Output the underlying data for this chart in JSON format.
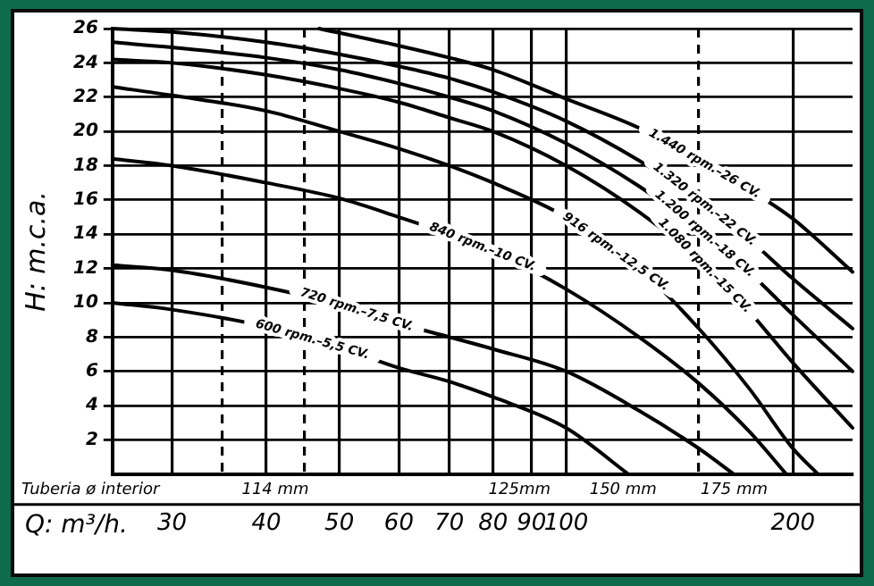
{
  "chart_data": {
    "type": "line",
    "xlabel": "Q: m³/h.",
    "ylabel": "H: m.c.a.",
    "log": "x",
    "xlim": [
      25,
      240
    ],
    "ylim": [
      0,
      26
    ],
    "xticks": [
      30,
      {
        "value": 35,
        "label": null
      },
      40,
      {
        "value": 45,
        "label": null
      },
      50,
      60,
      70,
      80,
      90,
      100,
      {
        "value": 150,
        "label": null
      },
      200
    ],
    "yticks": [
      2,
      4,
      6,
      8,
      10,
      12,
      14,
      16,
      18,
      20,
      22,
      24,
      26
    ],
    "grid": true,
    "legend": false,
    "marker": "none",
    "line_style": "solid",
    "annotations": [
      "Tuberia ø interior",
      "114 mm",
      "125mm",
      "150 mm",
      "175 mm"
    ],
    "series": [
      {
        "name": "1.440 rpm.–26 CV.",
        "color": "#000000",
        "x": [
          47,
          60,
          70,
          80,
          100,
          125,
          150,
          175,
          200,
          240
        ],
        "values": [
          26,
          25.0,
          24.3,
          23.6,
          21.9,
          20.2,
          18.3,
          16.6,
          14.9,
          11.8
        ]
      },
      {
        "name": "1.320 rpm.–22 CV.",
        "color": "#000000",
        "x": [
          25,
          30,
          40,
          50,
          60,
          70,
          80,
          100,
          125,
          150,
          175,
          200,
          240
        ],
        "values": [
          26.0,
          25.8,
          25.2,
          24.5,
          23.8,
          23.1,
          22.3,
          20.6,
          18.3,
          16.0,
          13.7,
          11.4,
          8.5
        ]
      },
      {
        "name": "1.200 rpm.–18 CV.",
        "color": "#000000",
        "x": [
          25,
          30,
          40,
          50,
          60,
          70,
          80,
          100,
          125,
          150,
          175,
          200,
          240
        ],
        "values": [
          25.2,
          24.9,
          24.3,
          23.6,
          22.8,
          22.0,
          21.2,
          19.3,
          16.8,
          14.3,
          11.8,
          9.3,
          6.0
        ]
      },
      {
        "name": "1.080 rpm.–15 CV.",
        "color": "#000000",
        "x": [
          25,
          30,
          40,
          50,
          60,
          70,
          80,
          100,
          125,
          150,
          175,
          200,
          240
        ],
        "values": [
          24.2,
          24.0,
          23.3,
          22.5,
          21.7,
          20.8,
          20.0,
          18.0,
          15.3,
          12.5,
          9.5,
          6.5,
          2.7
        ]
      },
      {
        "name": "916 rpm.–12,5 CV.",
        "color": "#000000",
        "x": [
          25,
          30,
          40,
          50,
          60,
          70,
          80,
          100,
          125,
          150,
          175,
          200,
          216
        ],
        "values": [
          22.6,
          22.1,
          21.2,
          20.0,
          19.0,
          18.0,
          17.0,
          15.0,
          12.0,
          8.5,
          5.0,
          1.5,
          0
        ]
      },
      {
        "name": "840 rpm.–10 CV.",
        "color": "#000000",
        "x": [
          25,
          30,
          40,
          50,
          60,
          70,
          80,
          100,
          125,
          150,
          175,
          196
        ],
        "values": [
          18.4,
          18.0,
          17.0,
          16.1,
          15.0,
          14.0,
          13.0,
          10.8,
          8.0,
          5.3,
          2.5,
          0
        ]
      },
      {
        "name": "720 rpm.–7,5 CV.",
        "color": "#000000",
        "x": [
          25,
          30,
          40,
          50,
          60,
          70,
          80,
          100,
          125,
          150,
          167
        ],
        "values": [
          12.2,
          11.9,
          10.9,
          9.9,
          8.8,
          8.0,
          7.3,
          6.0,
          3.7,
          1.5,
          0
        ]
      },
      {
        "name": "600 rpm.–5,5 CV.",
        "color": "#000000",
        "x": [
          25,
          30,
          40,
          50,
          60,
          70,
          80,
          100,
          121
        ],
        "values": [
          10.0,
          9.6,
          8.6,
          7.4,
          6.2,
          5.4,
          4.5,
          2.7,
          0
        ]
      }
    ]
  }
}
